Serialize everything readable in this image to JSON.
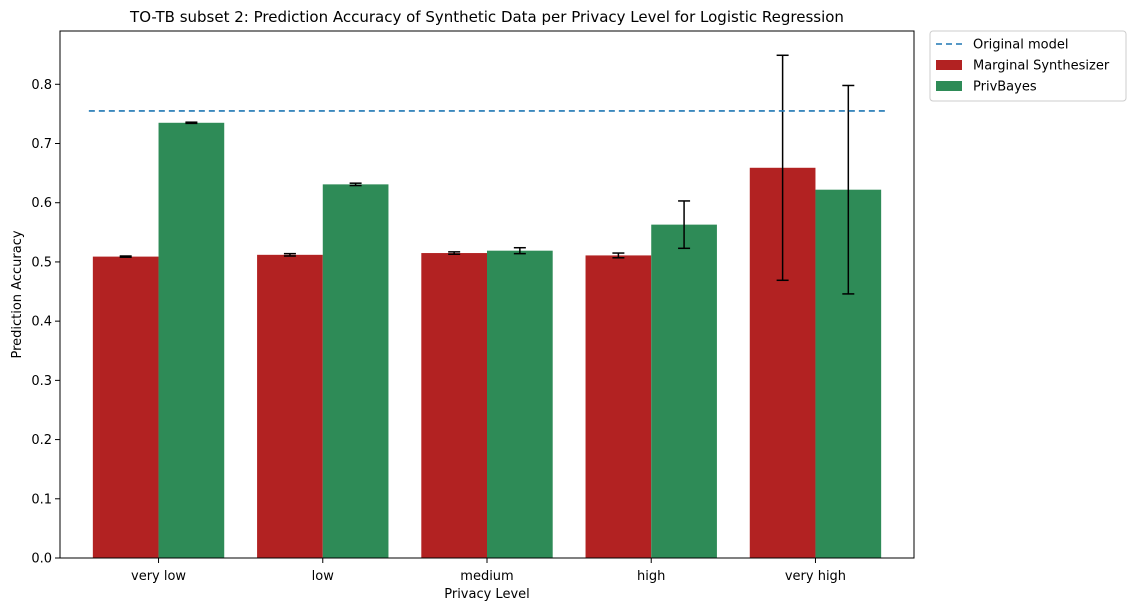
{
  "chart_data": {
    "type": "bar",
    "title": "TO-TB subset 2: Prediction Accuracy of Synthetic Data per Privacy Level for Logistic Regression",
    "xlabel": "Privacy Level",
    "ylabel": "Prediction Accuracy",
    "ylim": [
      0,
      0.89
    ],
    "yticks": [
      0.0,
      0.1,
      0.2,
      0.3,
      0.4,
      0.5,
      0.6,
      0.7,
      0.8
    ],
    "yticks_labels": [
      "0.0",
      "0.1",
      "0.2",
      "0.3",
      "0.4",
      "0.5",
      "0.6",
      "0.7",
      "0.8"
    ],
    "grid": false,
    "categories": [
      "very low",
      "low",
      "medium",
      "high",
      "very high"
    ],
    "series": [
      {
        "name": "Marginal Synthesizer",
        "color": "#b22222",
        "values": [
          0.509,
          0.512,
          0.515,
          0.511,
          0.659
        ],
        "errors": [
          0.001,
          0.002,
          0.002,
          0.004,
          0.19
        ]
      },
      {
        "name": "PrivBayes",
        "color": "#2e8b57",
        "values": [
          0.735,
          0.631,
          0.519,
          0.563,
          0.622
        ],
        "errors": [
          0.001,
          0.002,
          0.005,
          0.04,
          0.176
        ]
      }
    ],
    "reference_line": {
      "name": "Original model",
      "value": 0.755,
      "color": "#1f77b4",
      "style": "dashed"
    },
    "legend": {
      "placement": "outside-top-right",
      "entries": [
        "Original model",
        "Marginal Synthesizer",
        "PrivBayes"
      ]
    }
  }
}
